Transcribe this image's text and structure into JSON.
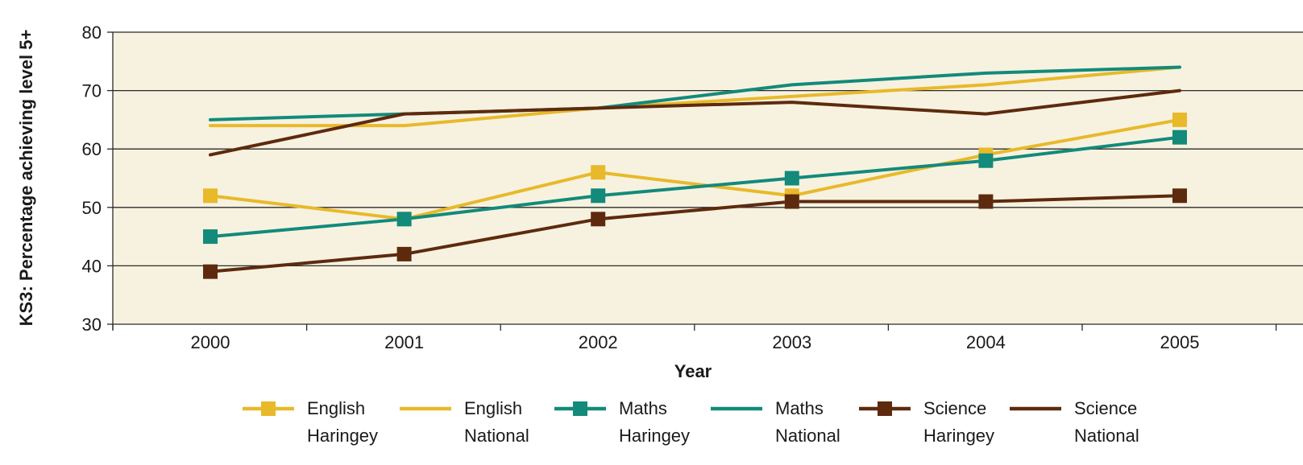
{
  "chart_data": {
    "type": "line",
    "title": "",
    "xlabel": "Year",
    "ylabel": "KS3: Percentage achieving level 5+",
    "ylim": [
      30,
      80
    ],
    "yticks": [
      30,
      40,
      50,
      60,
      70,
      80
    ],
    "categories": [
      "2000",
      "2001",
      "2002",
      "2003",
      "2004",
      "2005"
    ],
    "grid": "horizontal",
    "plot_background": "#f7f2e0",
    "legend_position": "bottom",
    "series": [
      {
        "name": "English Haringey",
        "legend_lines": [
          "English",
          "Haringey"
        ],
        "color": "#e8b92a",
        "marker": "square",
        "values": [
          52,
          48,
          56,
          52,
          59,
          65
        ]
      },
      {
        "name": "English National",
        "legend_lines": [
          "English",
          "National"
        ],
        "color": "#e8b92a",
        "marker": "none",
        "values": [
          64,
          64,
          67,
          69,
          71,
          74
        ]
      },
      {
        "name": "Maths Haringey",
        "legend_lines": [
          "Maths",
          "Haringey"
        ],
        "color": "#138a7a",
        "marker": "square",
        "values": [
          45,
          48,
          52,
          55,
          58,
          62
        ]
      },
      {
        "name": "Maths National",
        "legend_lines": [
          "Maths",
          "National"
        ],
        "color": "#138a7a",
        "marker": "none",
        "values": [
          65,
          66,
          67,
          71,
          73,
          74
        ]
      },
      {
        "name": "Science Haringey",
        "legend_lines": [
          "Science",
          "Haringey"
        ],
        "color": "#5e2a0e",
        "marker": "square",
        "values": [
          39,
          42,
          48,
          51,
          51,
          52
        ]
      },
      {
        "name": "Science National",
        "legend_lines": [
          "Science",
          "National"
        ],
        "color": "#5e2a0e",
        "marker": "none",
        "values": [
          59,
          66,
          67,
          68,
          66,
          70
        ]
      }
    ]
  }
}
